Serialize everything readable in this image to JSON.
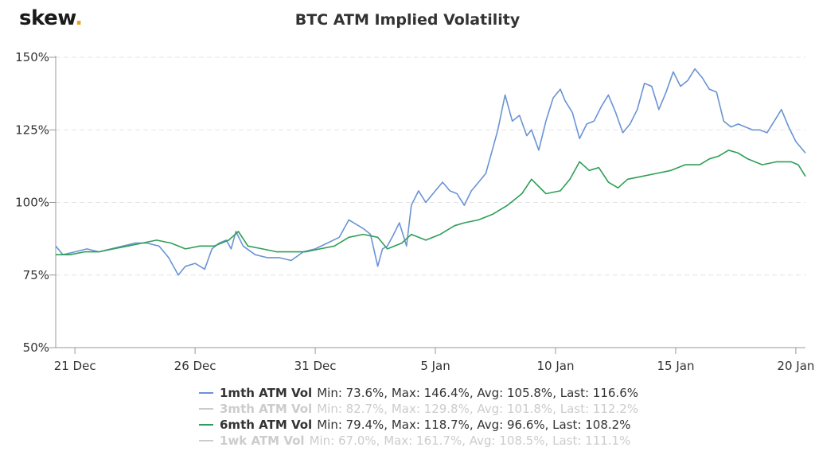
{
  "logo": {
    "text": "skew",
    "dot": "."
  },
  "chart_data": {
    "type": "line",
    "title": "BTC ATM Implied Volatility",
    "ylim": [
      50,
      150
    ],
    "yticks": [
      "50%",
      "75%",
      "100%",
      "125%",
      "150%"
    ],
    "ytick_values": [
      50,
      75,
      100,
      125,
      150
    ],
    "xlim": [
      20.2,
      51.4
    ],
    "xticks": [
      "21 Dec",
      "26 Dec",
      "31 Dec",
      "5 Jan",
      "10 Jan",
      "15 Jan",
      "20 Jan"
    ],
    "xtick_values": [
      21,
      26,
      31,
      36,
      41,
      46,
      51
    ],
    "x_note_days_since_nov30": true,
    "grid": true,
    "legend_position": "bottom",
    "series": [
      {
        "name": "1mth ATM Vol",
        "stats": "Min: 73.6%, Max: 146.4%, Avg: 105.8%, Last: 116.6%",
        "color": "#6a93d4",
        "visible": true,
        "x": [
          20.2,
          20.5,
          21,
          21.5,
          22,
          22.5,
          23,
          23.5,
          24,
          24.5,
          24.9,
          25.3,
          25.6,
          26,
          26.4,
          26.7,
          27,
          27.3,
          27.5,
          27.7,
          28,
          28.5,
          29,
          29.5,
          30,
          30.5,
          31,
          31.5,
          32,
          32.4,
          32.8,
          33,
          33.3,
          33.6,
          33.8,
          34,
          34.2,
          34.5,
          34.8,
          35,
          35.3,
          35.6,
          36,
          36.3,
          36.6,
          36.9,
          37.2,
          37.5,
          37.8,
          38.1,
          38.4,
          38.6,
          38.9,
          39.2,
          39.5,
          39.8,
          40,
          40.3,
          40.6,
          40.9,
          41.2,
          41.4,
          41.7,
          42,
          42.3,
          42.6,
          42.9,
          43.2,
          43.5,
          43.8,
          44.1,
          44.4,
          44.7,
          45,
          45.3,
          45.6,
          45.9,
          46.2,
          46.5,
          46.8,
          47.1,
          47.4,
          47.7,
          48,
          48.3,
          48.6,
          48.9,
          49.2,
          49.5,
          49.8,
          50.1,
          50.4,
          50.7,
          51,
          51.4
        ],
        "y": [
          85,
          82,
          83,
          84,
          83,
          84,
          85,
          86,
          86,
          85,
          81,
          75,
          78,
          79,
          77,
          84,
          86,
          87,
          84,
          90,
          85,
          82,
          81,
          81,
          80,
          83,
          84,
          86,
          88,
          94,
          92,
          91,
          89,
          78,
          84,
          85,
          88,
          93,
          85,
          99,
          104,
          100,
          104,
          107,
          104,
          103,
          99,
          104,
          107,
          110,
          119,
          125,
          137,
          128,
          130,
          123,
          125,
          118,
          128,
          136,
          139,
          135,
          131,
          122,
          127,
          128,
          133,
          137,
          131,
          124,
          127,
          132,
          141,
          140,
          132,
          138,
          145,
          140,
          142,
          146,
          143,
          139,
          138,
          128,
          126,
          127,
          126,
          125,
          125,
          124,
          128,
          132,
          126,
          121,
          117
        ]
      },
      {
        "name": "3mth ATM Vol",
        "stats": "Min: 82.7%, Max: 129.8%, Avg: 101.8%, Last: 112.2%",
        "color": "#cccccc",
        "visible": false,
        "x": [],
        "y": []
      },
      {
        "name": "6mth ATM Vol",
        "stats": "Min: 79.4%, Max: 118.7%, Avg: 96.6%, Last: 108.2%",
        "color": "#2e9e55",
        "visible": true,
        "x": [
          20.2,
          20.8,
          21.4,
          22,
          22.6,
          23.2,
          23.8,
          24.4,
          25,
          25.6,
          26.2,
          26.8,
          27.4,
          27.8,
          28.2,
          28.8,
          29.4,
          30,
          30.6,
          31.2,
          31.8,
          32.4,
          33,
          33.6,
          34,
          34.6,
          35,
          35.6,
          36.2,
          36.8,
          37.2,
          37.8,
          38.4,
          39,
          39.6,
          40,
          40.6,
          41.2,
          41.6,
          42,
          42.4,
          42.8,
          43.2,
          43.6,
          44,
          44.6,
          45.2,
          45.8,
          46.4,
          47,
          47.4,
          47.8,
          48.2,
          48.6,
          49,
          49.6,
          50.2,
          50.8,
          51.1,
          51.4
        ],
        "y": [
          82,
          82,
          83,
          83,
          84,
          85,
          86,
          87,
          86,
          84,
          85,
          85,
          87,
          90,
          85,
          84,
          83,
          83,
          83,
          84,
          85,
          88,
          89,
          88,
          84,
          86,
          89,
          87,
          89,
          92,
          93,
          94,
          96,
          99,
          103,
          108,
          103,
          104,
          108,
          114,
          111,
          112,
          107,
          105,
          108,
          109,
          110,
          111,
          113,
          113,
          115,
          116,
          118,
          117,
          115,
          113,
          114,
          114,
          113,
          109
        ]
      },
      {
        "name": "1wk ATM Vol",
        "stats": "Min: 67.0%, Max: 161.7%, Avg: 108.5%, Last: 111.1%",
        "color": "#cccccc",
        "visible": false,
        "x": [],
        "y": []
      }
    ]
  }
}
